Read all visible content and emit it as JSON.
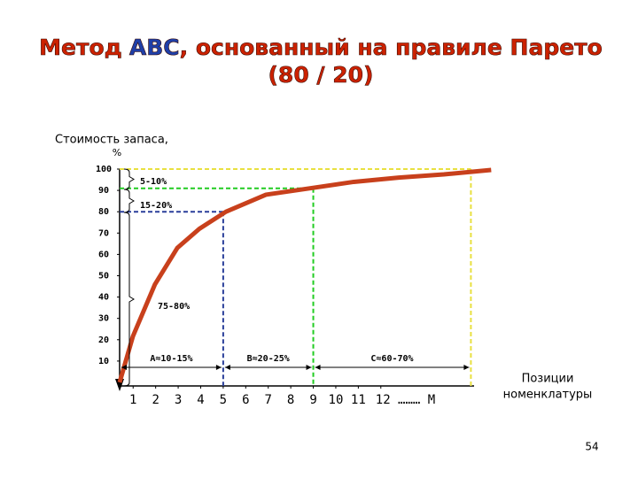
{
  "chart_data": {
    "type": "line",
    "title": [
      "Метод",
      "ABC",
      ", основанный на правиле Парето",
      "(80 / 20)"
    ],
    "ylabel": [
      "Стоимость запаса,",
      "%"
    ],
    "xlabel": [
      "Позиции",
      "номенклатуры"
    ],
    "xlim": [
      0.4,
      17.4
    ],
    "xticks": [
      1,
      2,
      3,
      4,
      5,
      6,
      7,
      8,
      9,
      10,
      11,
      {
        "value": 12,
        "label": "12 ……… M"
      }
    ],
    "ylim": [
      0,
      100
    ],
    "yticks": [
      10,
      20,
      30,
      40,
      50,
      60,
      70,
      80,
      90,
      100
    ],
    "series": [
      {
        "color": "#c8401c",
        "x": [
          0.4,
          0.99,
          1.97,
          2.96,
          3.94,
          5.12,
          6.9,
          8.86,
          10.8,
          12.8,
          14.8,
          16.9
        ],
        "values": [
          0,
          21.6,
          46,
          63,
          72,
          80,
          88,
          91,
          94,
          96,
          97.5,
          99.6
        ]
      }
    ],
    "reference_lines": [
      {
        "color": "#2a3f9a",
        "x": 5,
        "y": 80
      },
      {
        "color": "#22cc22",
        "x": 9,
        "y": 91
      },
      {
        "color": "#e8e040",
        "x": 16,
        "y": 100
      }
    ],
    "braces": [
      "5-10%",
      "15-20%",
      "75-80%"
    ],
    "groups": [
      "A≈10-15%",
      "B≈20-25%",
      "C≈60-70%"
    ]
  },
  "page_number": "54"
}
